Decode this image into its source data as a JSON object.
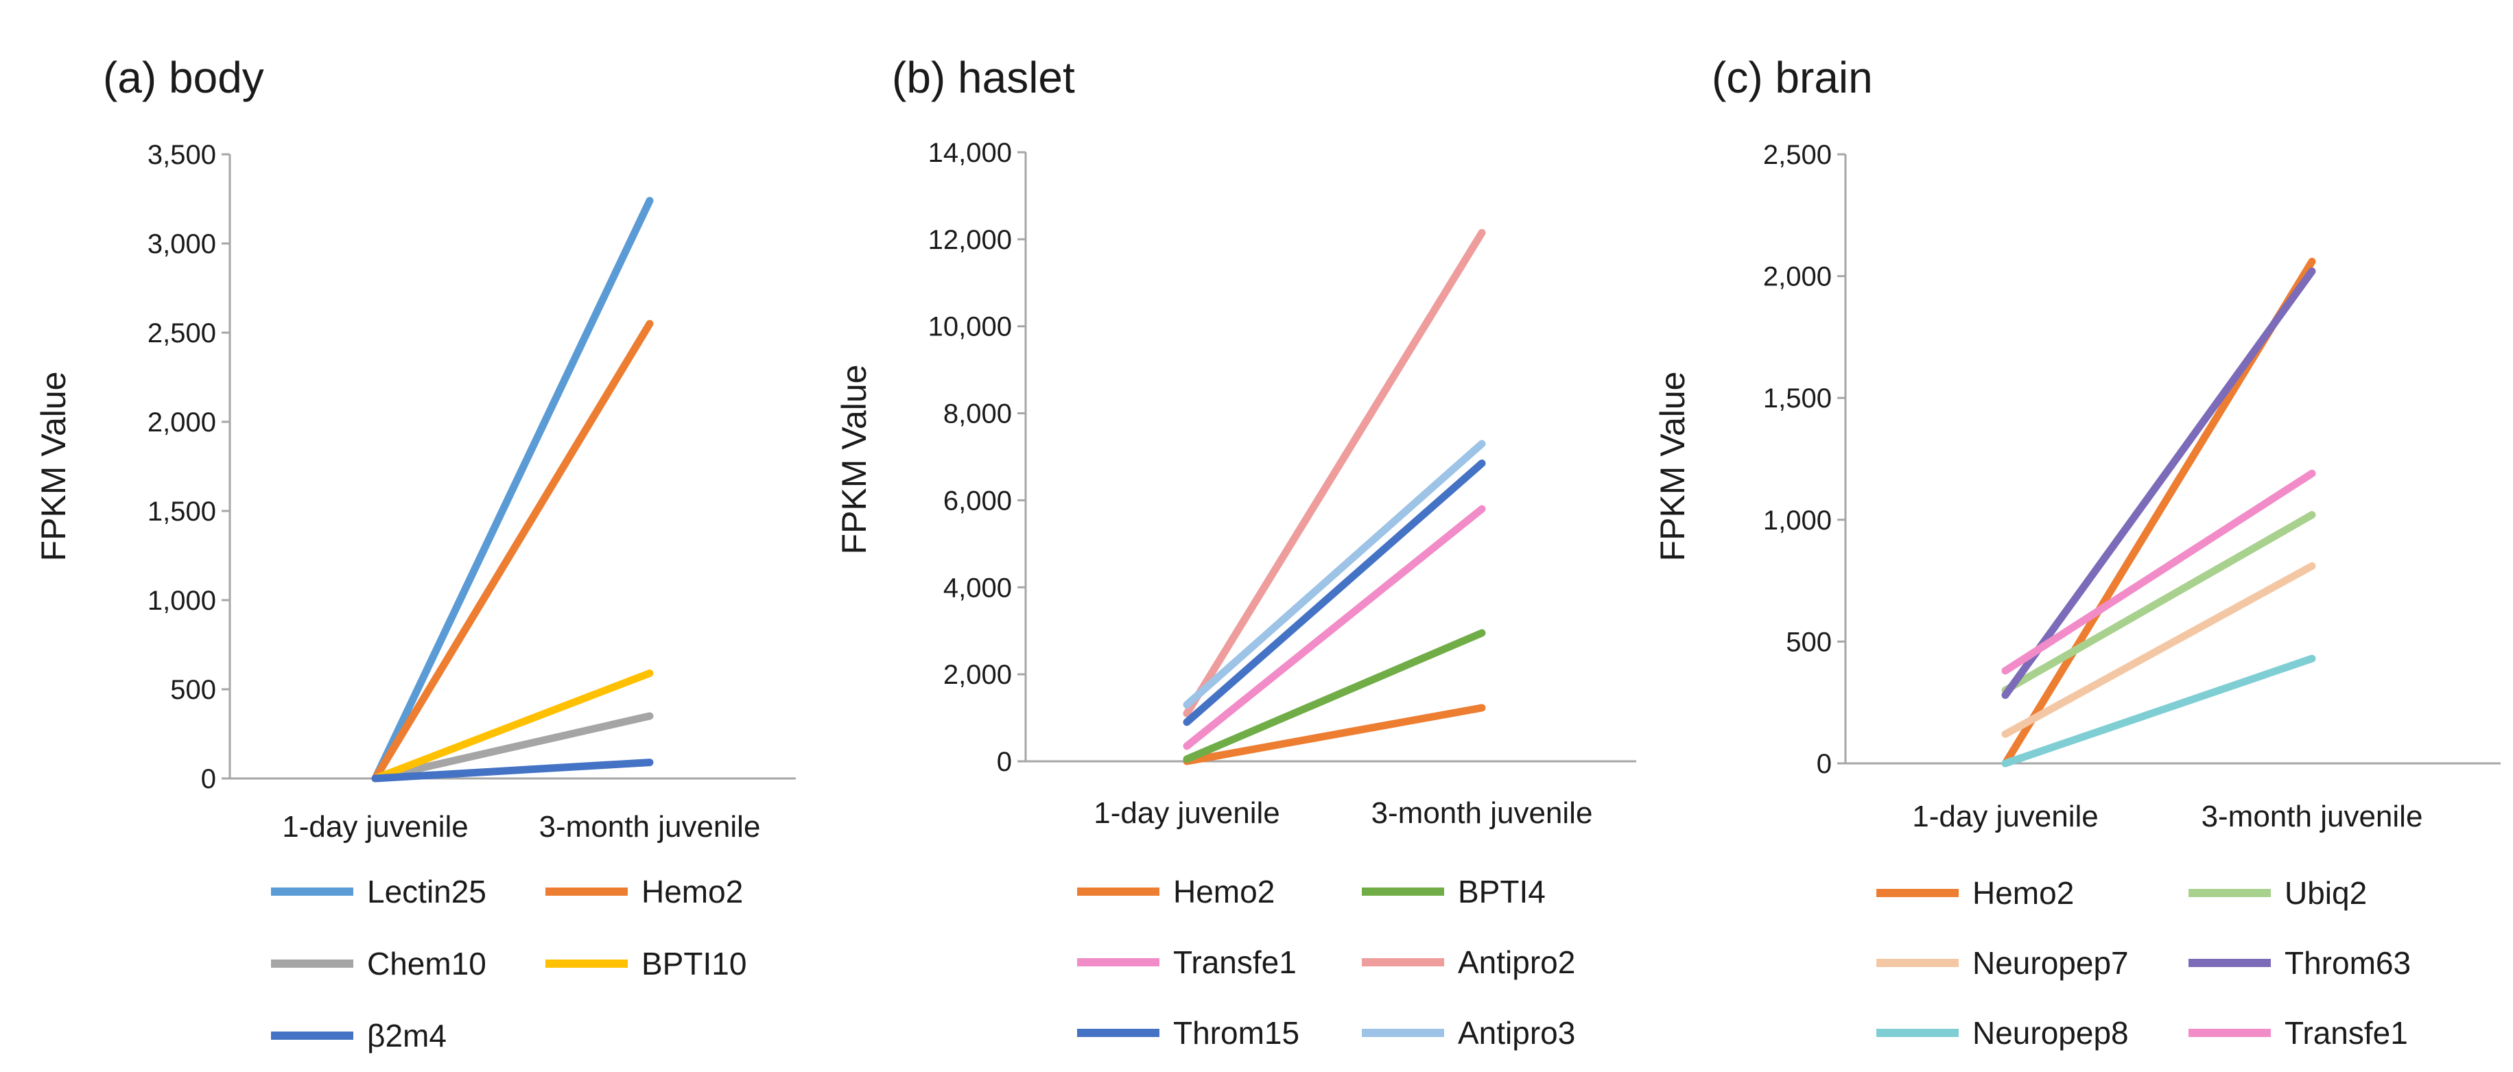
{
  "chart_data": [
    {
      "type": "line",
      "title": "(a) body",
      "ylabel": "FPKM Value",
      "xlabel": "",
      "categories": [
        "1-day juvenile",
        "3-month juvenile"
      ],
      "ylim": [
        0,
        3500
      ],
      "yticks": [
        0,
        500,
        1000,
        1500,
        2000,
        2500,
        3000,
        3500
      ],
      "ytick_labels": [
        "0",
        "500",
        "1,000",
        "1,500",
        "2,000",
        "2,500",
        "3,000",
        "3,500"
      ],
      "series": [
        {
          "name": "Lectin25",
          "values": [
            0,
            3240
          ],
          "color": "#5B9BD5"
        },
        {
          "name": "Hemo2",
          "values": [
            0,
            2550
          ],
          "color": "#ED7D31"
        },
        {
          "name": "Chem10",
          "values": [
            0,
            350
          ],
          "color": "#A5A5A5"
        },
        {
          "name": "BPTI10",
          "values": [
            0,
            590
          ],
          "color": "#FFC000"
        },
        {
          "name": "β2m4",
          "values": [
            0,
            90
          ],
          "color": "#4472C4"
        }
      ]
    },
    {
      "type": "line",
      "title": "(b) haslet",
      "ylabel": "FPKM Value",
      "xlabel": "",
      "categories": [
        "1-day juvenile",
        "3-month juvenile"
      ],
      "ylim": [
        0,
        14000
      ],
      "yticks": [
        0,
        2000,
        4000,
        6000,
        8000,
        10000,
        12000,
        14000
      ],
      "ytick_labels": [
        "0",
        "2,000",
        "4,000",
        "6,000",
        "8,000",
        "10,000",
        "12,000",
        "14,000"
      ],
      "series": [
        {
          "name": "Hemo2",
          "values": [
            0,
            1230
          ],
          "color": "#ED7D31"
        },
        {
          "name": "BPTI4",
          "values": [
            50,
            2950
          ],
          "color": "#70AD47"
        },
        {
          "name": "Transfe1",
          "values": [
            350,
            5800
          ],
          "color": "#F28CC8"
        },
        {
          "name": "Antipro2",
          "values": [
            1100,
            12150
          ],
          "color": "#EE9C9C"
        },
        {
          "name": "Throm15",
          "values": [
            900,
            6850
          ],
          "color": "#4472C4"
        },
        {
          "name": "Antipro3",
          "values": [
            1300,
            7300
          ],
          "color": "#9DC3E6"
        }
      ]
    },
    {
      "type": "line",
      "title": "(c) brain",
      "ylabel": "FPKM Value",
      "xlabel": "",
      "categories": [
        "1-day juvenile",
        "3-month juvenile"
      ],
      "ylim": [
        0,
        2500
      ],
      "yticks": [
        0,
        500,
        1000,
        1500,
        2000,
        2500
      ],
      "ytick_labels": [
        "0",
        "500",
        "1,000",
        "1,500",
        "2,000",
        "2,500"
      ],
      "series": [
        {
          "name": "Hemo2",
          "values": [
            0,
            2060
          ],
          "color": "#ED7D31"
        },
        {
          "name": "Ubiq2",
          "values": [
            300,
            1020
          ],
          "color": "#A9D18E"
        },
        {
          "name": "Neuropep7",
          "values": [
            120,
            810
          ],
          "color": "#F4C7A4"
        },
        {
          "name": "Throm63",
          "values": [
            280,
            2020
          ],
          "color": "#7B6BB8"
        },
        {
          "name": "Neuropep8",
          "values": [
            0,
            430
          ],
          "color": "#7FCED4"
        },
        {
          "name": "Transfe1",
          "values": [
            380,
            1190
          ],
          "color": "#F28CC8"
        }
      ]
    }
  ]
}
